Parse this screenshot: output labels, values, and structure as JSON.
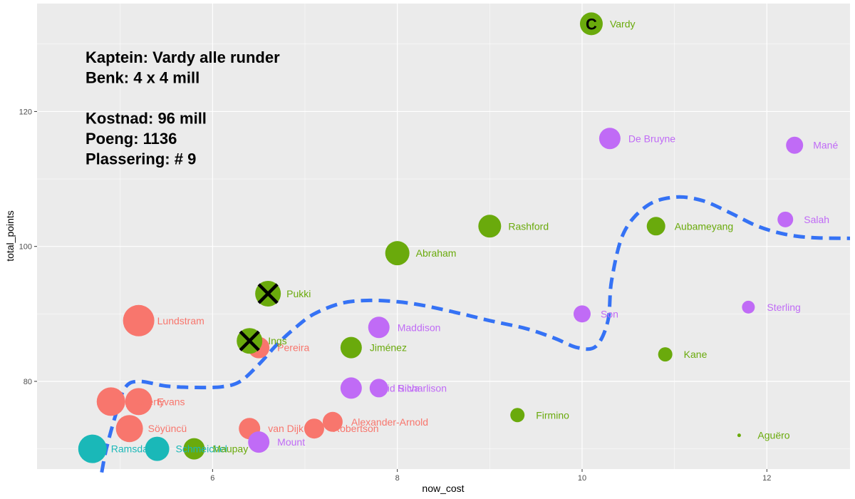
{
  "chart_data": {
    "type": "scatter",
    "xlabel": "now_cost",
    "ylabel": "total_points",
    "xlim": [
      4.1,
      12.9
    ],
    "ylim": [
      67,
      136
    ],
    "x_ticks": [
      6,
      8,
      10,
      12
    ],
    "y_ticks": [
      80,
      100,
      120
    ],
    "grid": true,
    "legend": "none",
    "colors": {
      "panel": "#ebebeb",
      "grid": "#ffffff",
      "goalkeeper": "#1ab8b8",
      "defender": "#f8766d",
      "midfielder": "#c06bf6",
      "forward": "#6aaa0c",
      "smooth": "#3572f5"
    },
    "annotations": [
      "Kaptein: Vardy alle runder",
      "Benk: 4 x 4 mill",
      "",
      "Kostnad: 96 mill",
      "Poeng: 1136",
      "Plassering: # 9"
    ],
    "captain_marker": "C",
    "points": [
      {
        "label": "Vardy",
        "x": 10.1,
        "y": 133,
        "size": 16,
        "group": "forward",
        "captain": true
      },
      {
        "label": "De Bruyne",
        "x": 10.3,
        "y": 116,
        "size": 15,
        "group": "midfielder"
      },
      {
        "label": "Mané",
        "x": 12.3,
        "y": 115,
        "size": 12,
        "group": "midfielder"
      },
      {
        "label": "Salah",
        "x": 12.2,
        "y": 104,
        "size": 11,
        "group": "midfielder"
      },
      {
        "label": "Rashford",
        "x": 9.0,
        "y": 103,
        "size": 16,
        "group": "forward"
      },
      {
        "label": "Aubameyang",
        "x": 10.8,
        "y": 103,
        "size": 13,
        "group": "forward"
      },
      {
        "label": "Abraham",
        "x": 8.0,
        "y": 99,
        "size": 17,
        "group": "forward"
      },
      {
        "label": "Pukki",
        "x": 6.6,
        "y": 93,
        "size": 18,
        "group": "forward",
        "benched": true
      },
      {
        "label": "Sterling",
        "x": 11.8,
        "y": 91,
        "size": 9,
        "group": "midfielder"
      },
      {
        "label": "Son",
        "x": 10.0,
        "y": 90,
        "size": 12,
        "group": "midfielder"
      },
      {
        "label": "Lundstram",
        "x": 5.2,
        "y": 89,
        "size": 22,
        "group": "defender"
      },
      {
        "label": "Maddison",
        "x": 7.8,
        "y": 88,
        "size": 15,
        "group": "midfielder"
      },
      {
        "label": "Pereira",
        "x": 6.5,
        "y": 85,
        "size": 15,
        "group": "defender"
      },
      {
        "label": "Ings",
        "x": 6.4,
        "y": 86,
        "size": 18,
        "group": "forward",
        "benched": true
      },
      {
        "label": "Jiménez",
        "x": 7.5,
        "y": 85,
        "size": 15,
        "group": "forward"
      },
      {
        "label": "Kane",
        "x": 10.9,
        "y": 84,
        "size": 10,
        "group": "forward"
      },
      {
        "label": "David Silva",
        "x": 7.5,
        "y": 79,
        "size": 15,
        "group": "midfielder"
      },
      {
        "label": "Richarlison",
        "x": 7.8,
        "y": 79,
        "size": 13,
        "group": "midfielder"
      },
      {
        "label": "Doherty",
        "x": 4.9,
        "y": 77,
        "size": 20,
        "group": "defender"
      },
      {
        "label": "Evans",
        "x": 5.2,
        "y": 77,
        "size": 19,
        "group": "defender"
      },
      {
        "label": "Firmino",
        "x": 9.3,
        "y": 75,
        "size": 10,
        "group": "forward"
      },
      {
        "label": "Alexander-Arnold",
        "x": 7.3,
        "y": 74,
        "size": 14,
        "group": "defender"
      },
      {
        "label": "Robertson",
        "x": 7.1,
        "y": 73,
        "size": 14,
        "group": "defender"
      },
      {
        "label": "Söyüncü",
        "x": 5.1,
        "y": 73,
        "size": 19,
        "group": "defender"
      },
      {
        "label": "van Dijk",
        "x": 6.4,
        "y": 73,
        "size": 15,
        "group": "defender"
      },
      {
        "label": "Aguëro",
        "x": 11.7,
        "y": 72,
        "size": 2.5,
        "group": "forward"
      },
      {
        "label": "Mount",
        "x": 6.5,
        "y": 71,
        "size": 15,
        "group": "midfielder"
      },
      {
        "label": "Ramsdale",
        "x": 4.7,
        "y": 70,
        "size": 20,
        "group": "goalkeeper"
      },
      {
        "label": "Schmeichel",
        "x": 5.4,
        "y": 70,
        "size": 17,
        "group": "goalkeeper"
      },
      {
        "label": "Maupay",
        "x": 5.8,
        "y": 70,
        "size": 15,
        "group": "forward"
      }
    ],
    "smooth_line": [
      [
        4.8,
        66.5
      ],
      [
        4.85,
        70
      ],
      [
        4.95,
        75
      ],
      [
        5.05,
        79
      ],
      [
        5.2,
        80
      ],
      [
        5.5,
        79.3
      ],
      [
        5.8,
        79.1
      ],
      [
        6.1,
        79.2
      ],
      [
        6.3,
        80
      ],
      [
        6.5,
        82.5
      ],
      [
        6.7,
        85.5
      ],
      [
        6.9,
        88
      ],
      [
        7.1,
        90
      ],
      [
        7.4,
        91.6
      ],
      [
        7.7,
        92
      ],
      [
        8.0,
        91.8
      ],
      [
        8.3,
        91.2
      ],
      [
        8.7,
        90
      ],
      [
        9.0,
        89
      ],
      [
        9.4,
        87.8
      ],
      [
        9.7,
        86.4
      ],
      [
        9.95,
        85
      ],
      [
        10.15,
        85.2
      ],
      [
        10.28,
        89
      ],
      [
        10.32,
        95
      ],
      [
        10.45,
        102
      ],
      [
        10.7,
        106
      ],
      [
        11.0,
        107.3
      ],
      [
        11.3,
        106.8
      ],
      [
        11.6,
        105
      ],
      [
        11.9,
        103
      ],
      [
        12.2,
        101.8
      ],
      [
        12.5,
        101.3
      ],
      [
        12.9,
        101.2
      ]
    ]
  }
}
